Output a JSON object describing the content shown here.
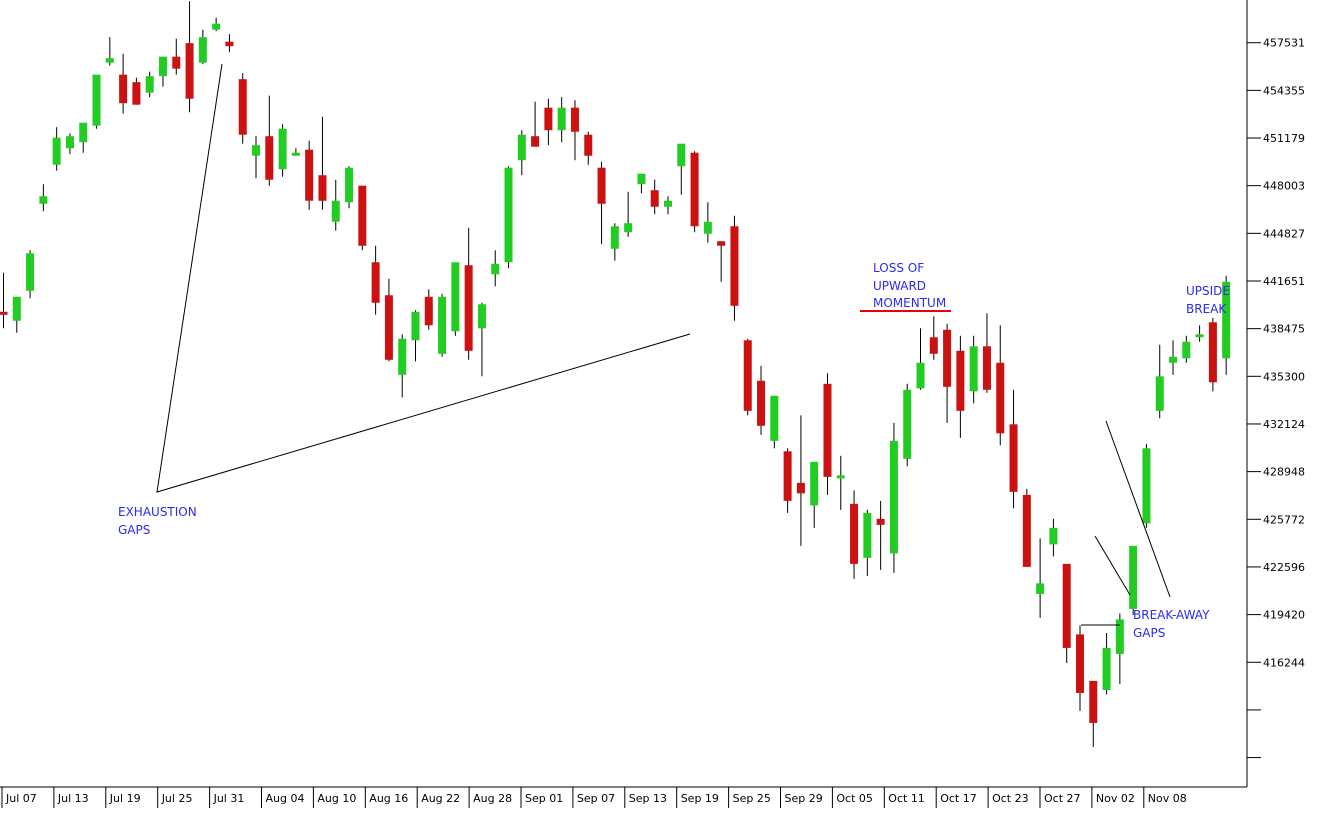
{
  "colors": {
    "up": "#22cc22",
    "down": "#cc1111",
    "wick": "#000000",
    "annotation_text": "#2a2af0",
    "annotation_line": "#000000",
    "highlight_line": "#ee0000",
    "axis": "#000000",
    "background": "#ffffff"
  },
  "chart_data": {
    "type": "candlestick",
    "title": "",
    "xlabel": "",
    "ylabel": "",
    "ylim": [
      410000,
      461000
    ],
    "yticks": [
      416244,
      419420,
      422596,
      425772,
      428948,
      432124,
      435300,
      438475,
      441651,
      444827,
      448003,
      451179,
      454355,
      457531
    ],
    "xtick_labels": [
      "Jul 07",
      "Jul 13",
      "Jul 19",
      "Jul 25",
      "Jul 31",
      "Aug 04",
      "Aug 10",
      "Aug 16",
      "Aug 22",
      "Aug 28",
      "Sep 01",
      "Sep 07",
      "Sep 13",
      "Sep 19",
      "Sep 25",
      "Sep 29",
      "Oct 05",
      "Oct 11",
      "Oct 17",
      "Oct 23",
      "Oct 27",
      "Nov 02",
      "Nov 08"
    ],
    "candles": [
      {
        "o": 439600,
        "h": 442200,
        "l": 438500,
        "c": 439400
      },
      {
        "o": 439000,
        "h": 440500,
        "l": 438200,
        "c": 440600
      },
      {
        "o": 441000,
        "h": 443700,
        "l": 440500,
        "c": 443500
      },
      {
        "o": 446800,
        "h": 448100,
        "l": 446300,
        "c": 447300
      },
      {
        "o": 449400,
        "h": 451900,
        "l": 449000,
        "c": 451200
      },
      {
        "o": 450500,
        "h": 451500,
        "l": 450100,
        "c": 451300
      },
      {
        "o": 450900,
        "h": 452000,
        "l": 450200,
        "c": 452200
      },
      {
        "o": 452000,
        "h": 455000,
        "l": 451800,
        "c": 455400
      },
      {
        "o": 456200,
        "h": 457900,
        "l": 456000,
        "c": 456500
      },
      {
        "o": 455400,
        "h": 456800,
        "l": 452800,
        "c": 453500
      },
      {
        "o": 454900,
        "h": 455200,
        "l": 453400,
        "c": 453400
      },
      {
        "o": 454200,
        "h": 455600,
        "l": 453900,
        "c": 455300
      },
      {
        "o": 455300,
        "h": 456600,
        "l": 454600,
        "c": 456600
      },
      {
        "o": 456600,
        "h": 457800,
        "l": 455400,
        "c": 455800
      },
      {
        "o": 457500,
        "h": 460300,
        "l": 452900,
        "c": 453800
      },
      {
        "o": 456200,
        "h": 458400,
        "l": 456100,
        "c": 457900
      },
      {
        "o": 458400,
        "h": 459200,
        "l": 458300,
        "c": 458800
      },
      {
        "o": 457600,
        "h": 458100,
        "l": 456900,
        "c": 457300
      },
      {
        "o": 455100,
        "h": 455500,
        "l": 450800,
        "c": 451400
      },
      {
        "o": 450000,
        "h": 451300,
        "l": 448500,
        "c": 450700
      },
      {
        "o": 451300,
        "h": 454000,
        "l": 448000,
        "c": 448400
      },
      {
        "o": 449100,
        "h": 452100,
        "l": 448600,
        "c": 451800
      },
      {
        "o": 450000,
        "h": 450500,
        "l": 450000,
        "c": 450200
      },
      {
        "o": 450400,
        "h": 451000,
        "l": 446400,
        "c": 447000
      },
      {
        "o": 448700,
        "h": 452600,
        "l": 446400,
        "c": 447000
      },
      {
        "o": 445600,
        "h": 448400,
        "l": 445000,
        "c": 447000
      },
      {
        "o": 446900,
        "h": 449300,
        "l": 446500,
        "c": 449200
      },
      {
        "o": 448000,
        "h": 448000,
        "l": 443700,
        "c": 444000
      },
      {
        "o": 442900,
        "h": 444000,
        "l": 439400,
        "c": 440200
      },
      {
        "o": 440700,
        "h": 441800,
        "l": 436300,
        "c": 436400
      },
      {
        "o": 435400,
        "h": 438100,
        "l": 433900,
        "c": 437800
      },
      {
        "o": 437700,
        "h": 439700,
        "l": 436300,
        "c": 439600
      },
      {
        "o": 440600,
        "h": 441100,
        "l": 438400,
        "c": 438700
      },
      {
        "o": 436800,
        "h": 440800,
        "l": 436600,
        "c": 440600
      },
      {
        "o": 438300,
        "h": 442700,
        "l": 438000,
        "c": 442900
      },
      {
        "o": 442700,
        "h": 445200,
        "l": 436400,
        "c": 437000
      },
      {
        "o": 438500,
        "h": 440200,
        "l": 435300,
        "c": 440100
      },
      {
        "o": 442100,
        "h": 443700,
        "l": 441300,
        "c": 442800
      },
      {
        "o": 442900,
        "h": 449300,
        "l": 442500,
        "c": 449200
      },
      {
        "o": 449700,
        "h": 451700,
        "l": 448700,
        "c": 451400
      },
      {
        "o": 451300,
        "h": 453600,
        "l": 450800,
        "c": 450600
      },
      {
        "o": 453200,
        "h": 453800,
        "l": 450700,
        "c": 451700
      },
      {
        "o": 451700,
        "h": 453900,
        "l": 450900,
        "c": 453200
      },
      {
        "o": 453200,
        "h": 453700,
        "l": 449700,
        "c": 451600
      },
      {
        "o": 451400,
        "h": 451600,
        "l": 449400,
        "c": 450000
      },
      {
        "o": 449200,
        "h": 449600,
        "l": 444100,
        "c": 446800
      },
      {
        "o": 443800,
        "h": 445500,
        "l": 443000,
        "c": 445300
      },
      {
        "o": 444900,
        "h": 447600,
        "l": 444600,
        "c": 445500
      },
      {
        "o": 448100,
        "h": 448800,
        "l": 447500,
        "c": 448800
      },
      {
        "o": 447700,
        "h": 448400,
        "l": 446100,
        "c": 446600
      },
      {
        "o": 446600,
        "h": 447300,
        "l": 446100,
        "c": 447000
      },
      {
        "o": 449300,
        "h": 450400,
        "l": 447400,
        "c": 450800
      },
      {
        "o": 450200,
        "h": 450300,
        "l": 444900,
        "c": 445300
      },
      {
        "o": 444800,
        "h": 446900,
        "l": 444200,
        "c": 445600
      },
      {
        "o": 444300,
        "h": 444300,
        "l": 441600,
        "c": 444000
      },
      {
        "o": 445300,
        "h": 446000,
        "l": 439000,
        "c": 440000
      },
      {
        "o": 437700,
        "h": 437800,
        "l": 432700,
        "c": 433000
      },
      {
        "o": 435000,
        "h": 436000,
        "l": 431400,
        "c": 432000
      },
      {
        "o": 431000,
        "h": 434000,
        "l": 430500,
        "c": 434000
      },
      {
        "o": 430300,
        "h": 430500,
        "l": 426200,
        "c": 427000
      },
      {
        "o": 428200,
        "h": 432700,
        "l": 424000,
        "c": 427500
      },
      {
        "o": 426700,
        "h": 429500,
        "l": 425200,
        "c": 429600
      },
      {
        "o": 434800,
        "h": 435500,
        "l": 427400,
        "c": 428600
      },
      {
        "o": 428500,
        "h": 430000,
        "l": 426400,
        "c": 428700
      },
      {
        "o": 426800,
        "h": 427700,
        "l": 421800,
        "c": 422800
      },
      {
        "o": 423200,
        "h": 426400,
        "l": 422000,
        "c": 426200
      },
      {
        "o": 425800,
        "h": 427000,
        "l": 422400,
        "c": 425400
      },
      {
        "o": 423500,
        "h": 432200,
        "l": 422200,
        "c": 431000
      },
      {
        "o": 429800,
        "h": 434800,
        "l": 429300,
        "c": 434400
      },
      {
        "o": 434500,
        "h": 438500,
        "l": 434400,
        "c": 436200
      },
      {
        "o": 437900,
        "h": 439300,
        "l": 436400,
        "c": 436800
      },
      {
        "o": 438400,
        "h": 438800,
        "l": 432200,
        "c": 434600
      },
      {
        "o": 437000,
        "h": 438000,
        "l": 431200,
        "c": 433000
      },
      {
        "o": 434300,
        "h": 438000,
        "l": 433500,
        "c": 437300
      },
      {
        "o": 437300,
        "h": 439500,
        "l": 434200,
        "c": 434400
      },
      {
        "o": 436200,
        "h": 438700,
        "l": 430700,
        "c": 431500
      },
      {
        "o": 432100,
        "h": 434400,
        "l": 426500,
        "c": 427600
      },
      {
        "o": 427400,
        "h": 427800,
        "l": 422800,
        "c": 422600
      },
      {
        "o": 420800,
        "h": 424500,
        "l": 419200,
        "c": 421500
      },
      {
        "o": 424100,
        "h": 425800,
        "l": 423300,
        "c": 425200
      },
      {
        "o": 422800,
        "h": 422800,
        "l": 416200,
        "c": 417200
      },
      {
        "o": 418100,
        "h": 418700,
        "l": 413000,
        "c": 414200
      },
      {
        "o": 415000,
        "h": 415000,
        "l": 410600,
        "c": 412200
      },
      {
        "o": 414400,
        "h": 418200,
        "l": 414100,
        "c": 417200
      },
      {
        "o": 416800,
        "h": 419500,
        "l": 414800,
        "c": 419100
      },
      {
        "o": 419800,
        "h": 424000,
        "l": 419400,
        "c": 424000
      },
      {
        "o": 425500,
        "h": 430800,
        "l": 425200,
        "c": 430500
      },
      {
        "o": 433000,
        "h": 437400,
        "l": 432500,
        "c": 435300
      },
      {
        "o": 436200,
        "h": 437700,
        "l": 435400,
        "c": 436600
      },
      {
        "o": 436500,
        "h": 438000,
        "l": 436200,
        "c": 437600
      },
      {
        "o": 437900,
        "h": 438700,
        "l": 437600,
        "c": 438100
      },
      {
        "o": 438900,
        "h": 439200,
        "l": 434300,
        "c": 434900
      },
      {
        "o": 436500,
        "h": 442000,
        "l": 435400,
        "c": 441600
      }
    ],
    "annotations": [
      {
        "id": "exhaustion",
        "lines": [
          "EXHAUSTION",
          "GAPS"
        ]
      },
      {
        "id": "momentum",
        "lines": [
          "LOSS OF",
          "UPWARD",
          "MOMENTUM"
        ]
      },
      {
        "id": "upside",
        "lines": [
          "UPSIDE",
          "BREAK"
        ]
      },
      {
        "id": "breakaway",
        "lines": [
          "BREAK-AWAY",
          "GAPS"
        ]
      }
    ]
  }
}
